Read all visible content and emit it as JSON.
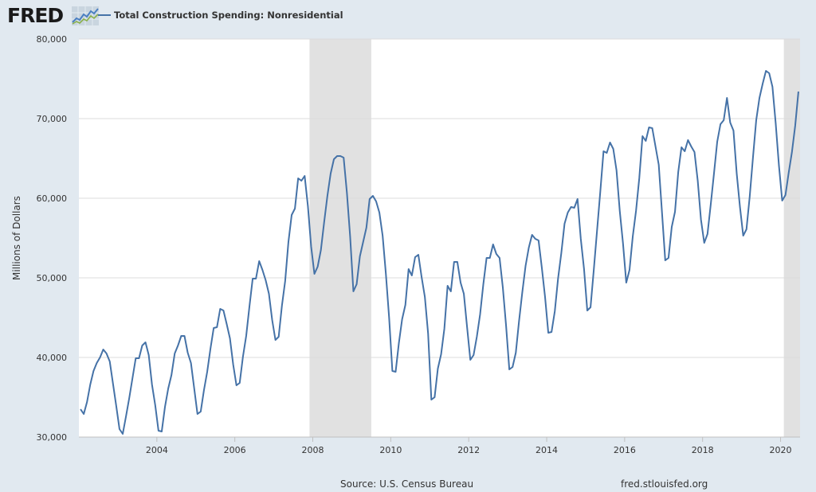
{
  "brand": {
    "name": "FRED",
    "logo_icon": "fred-line-chart-icon"
  },
  "colors": {
    "series": "#4572a7",
    "recession": "#e1e1e1",
    "background": "#e1e9f0",
    "plot": "#ffffff"
  },
  "footer": {
    "source": "Source: U.S. Census Bureau",
    "site": "fred.stlouisfed.org"
  },
  "chart_data": {
    "type": "line",
    "title": "",
    "xlabel": "",
    "ylabel": "Millions of Dollars",
    "ylim": [
      30000,
      80000
    ],
    "xlim": [
      "2002-01",
      "2020-06"
    ],
    "grid": true,
    "legend": "top-left",
    "y_ticks": [
      30000,
      40000,
      50000,
      60000,
      70000,
      80000
    ],
    "y_tick_labels": [
      "30,000",
      "40,000",
      "50,000",
      "60,000",
      "70,000",
      "80,000"
    ],
    "x_ticks": [
      "2004",
      "2006",
      "2008",
      "2010",
      "2012",
      "2014",
      "2016",
      "2018",
      "2020"
    ],
    "recessions": [
      {
        "start": "2007-12",
        "end": "2009-06"
      },
      {
        "start": "2020-02",
        "end": "2020-06"
      }
    ],
    "series": [
      {
        "name": "Total Construction Spending: Nonresidential",
        "color": "#4572a7",
        "start": "2002-01",
        "frequency": "monthly",
        "values": [
          33500,
          32900,
          34400,
          36600,
          38300,
          39300,
          40000,
          41000,
          40500,
          39500,
          36700,
          33900,
          31000,
          30400,
          32600,
          34900,
          37400,
          39900,
          39900,
          41500,
          41900,
          40300,
          36600,
          34000,
          30800,
          30700,
          33800,
          36100,
          37800,
          40500,
          41500,
          42700,
          42700,
          40600,
          39300,
          36100,
          32900,
          33200,
          35900,
          38200,
          41100,
          43700,
          43800,
          46100,
          45900,
          44200,
          42400,
          39100,
          36500,
          36800,
          40100,
          42700,
          46400,
          49900,
          49900,
          52100,
          51000,
          49700,
          48000,
          44700,
          42200,
          42600,
          46500,
          49600,
          54500,
          57900,
          58700,
          62500,
          62200,
          62800,
          59000,
          53900,
          50500,
          51400,
          53500,
          57000,
          60300,
          63100,
          64900,
          65300,
          65300,
          65100,
          60700,
          55200,
          48300,
          49200,
          52700,
          54500,
          56300,
          59900,
          60300,
          59600,
          58200,
          55300,
          50500,
          45000,
          38300,
          38200,
          41800,
          44800,
          46600,
          51100,
          50300,
          52600,
          52900,
          50100,
          47600,
          43000,
          34700,
          35000,
          38600,
          40400,
          43600,
          49000,
          48300,
          52000,
          52000,
          49400,
          48000,
          43800,
          39700,
          40300,
          42600,
          45400,
          49200,
          52500,
          52500,
          54200,
          53000,
          52500,
          48800,
          44000,
          38500,
          38800,
          40600,
          44600,
          48200,
          51500,
          53800,
          55400,
          54900,
          54700,
          51300,
          47600,
          43100,
          43200,
          45800,
          49900,
          53100,
          56800,
          58200,
          58900,
          58800,
          59900,
          54900,
          51100,
          45900,
          46300,
          51000,
          55900,
          60800,
          65900,
          65700,
          67000,
          66200,
          63500,
          58400,
          54300,
          49400,
          51000,
          55200,
          58400,
          62500,
          67800,
          67200,
          68900,
          68800,
          66500,
          64200,
          58200,
          52200,
          52500,
          56400,
          58300,
          63300,
          66400,
          65900,
          67300,
          66500,
          65800,
          62200,
          57300,
          54400,
          55500,
          59200,
          63100,
          67100,
          69300,
          69800,
          72600,
          69500,
          68500,
          63100,
          58900,
          55300,
          56100,
          60200,
          65100,
          69800,
          72600,
          74400,
          76000,
          75700,
          74000,
          69400,
          64100,
          59700,
          60400,
          63200,
          65800,
          69100,
          73400
        ]
      }
    ]
  }
}
